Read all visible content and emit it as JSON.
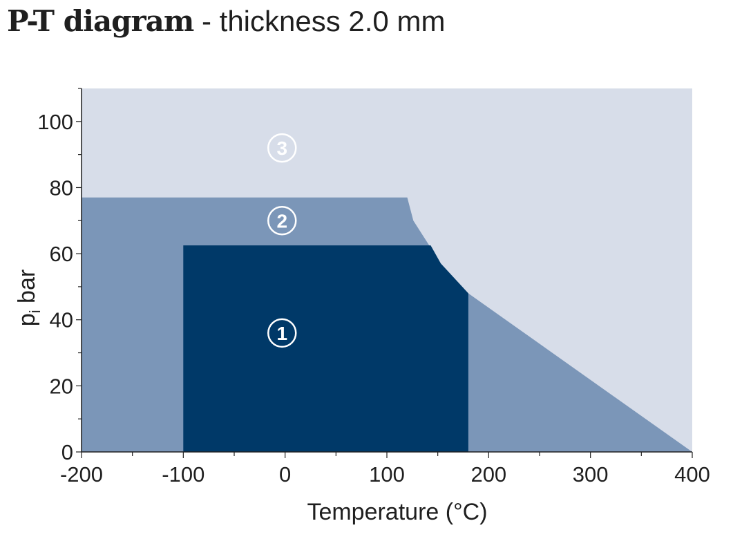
{
  "title": {
    "bold": "P-T diagram",
    "rest": " - thickness 2.0 mm"
  },
  "chart_data": {
    "type": "area",
    "title": "P-T diagram - thickness 2.0 mm",
    "xlabel": "Temperature (°C)",
    "ylabel": "p",
    "ylabel_subscript": "i",
    "ylabel_unit": " bar",
    "xlim": [
      -200,
      400
    ],
    "ylim": [
      0,
      110
    ],
    "xticks": [
      -200,
      -100,
      0,
      100,
      200,
      300,
      400
    ],
    "yticks": [
      0,
      20,
      40,
      60,
      80,
      100
    ],
    "xtick_labels": [
      "-200",
      "-100",
      "0",
      "100",
      "200",
      "300",
      "400"
    ],
    "ytick_labels": [
      "0",
      "20",
      "40",
      "60",
      "80",
      "100"
    ],
    "grid": false,
    "colors": {
      "zone3": "#d7dde9",
      "zone2": "#7b96b8",
      "zone1": "#003968"
    },
    "zones": [
      {
        "label": "3",
        "color": "#d7dde9",
        "polygon": [
          [
            -200,
            0
          ],
          [
            400,
            0
          ],
          [
            400,
            110
          ],
          [
            -200,
            110
          ]
        ]
      },
      {
        "label": "2",
        "color": "#7b96b8",
        "polygon": [
          [
            -200,
            0
          ],
          [
            400,
            0
          ],
          [
            180,
            48
          ],
          [
            153,
            57
          ],
          [
            126,
            70
          ],
          [
            120,
            77
          ],
          [
            -200,
            77
          ]
        ]
      },
      {
        "label": "1",
        "color": "#003968",
        "polygon": [
          [
            -100,
            0
          ],
          [
            180,
            0
          ],
          [
            180,
            48
          ],
          [
            153,
            57
          ],
          [
            143,
            62.5
          ],
          [
            -100,
            62.5
          ]
        ]
      }
    ],
    "zone_labels": [
      {
        "text": "3",
        "x": -3,
        "y": 92
      },
      {
        "text": "2",
        "x": -3,
        "y": 70
      },
      {
        "text": "1",
        "x": -3,
        "y": 36
      }
    ]
  }
}
